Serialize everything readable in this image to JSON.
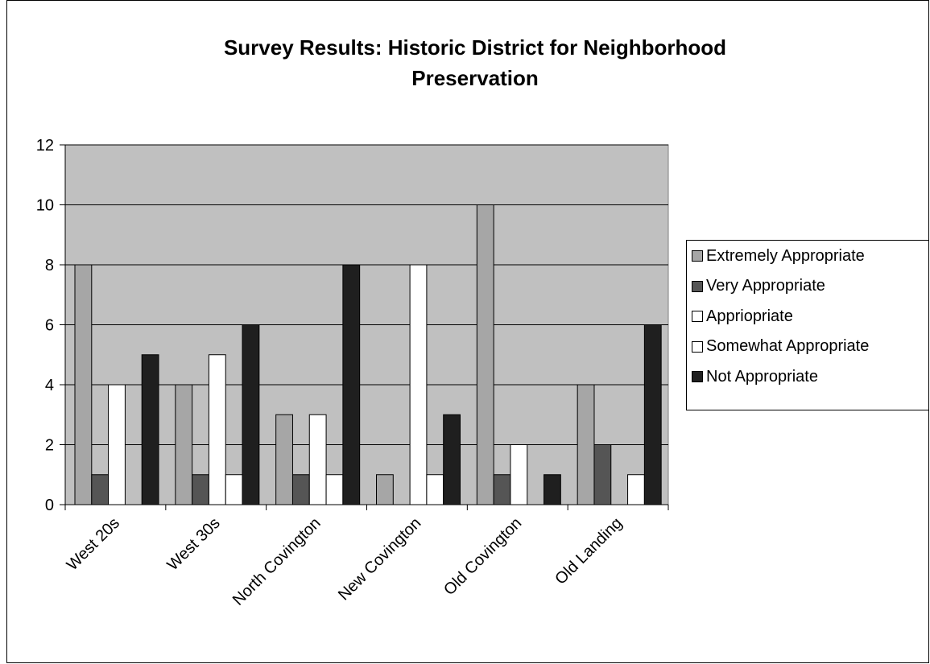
{
  "chart_data": {
    "type": "bar",
    "title": "Survey Results: Historic District for Neighborhood Preservation",
    "title_lines": [
      "Survey Results: Historic District for Neighborhood",
      "Preservation"
    ],
    "xlabel": "",
    "ylabel": "",
    "ylim": [
      0,
      12
    ],
    "yticks": [
      "0",
      "2",
      "4",
      "6",
      "8",
      "10",
      "12"
    ],
    "grid": true,
    "legend_position": "right",
    "categories": [
      "West 20s",
      "West 30s",
      "North Covington",
      "New Covington",
      "Old Covington",
      "Old Landing"
    ],
    "series": [
      {
        "name": "Extremely Appropriate",
        "color": "#a6a6a6",
        "values": [
          8,
          4,
          3,
          1,
          10,
          4
        ]
      },
      {
        "name": "Very Appropriate",
        "color": "#555555",
        "values": [
          1,
          1,
          1,
          0,
          1,
          2
        ]
      },
      {
        "name": "Appriopriate",
        "color": "#ffffff",
        "values": [
          4,
          5,
          3,
          8,
          2,
          0
        ]
      },
      {
        "name": "Somewhat Appropriate",
        "color": "#ffffff",
        "values": [
          0,
          1,
          1,
          1,
          0,
          1
        ]
      },
      {
        "name": "Not Appropriate",
        "color": "#1f1f1f",
        "values": [
          5,
          6,
          8,
          3,
          1,
          6
        ]
      }
    ],
    "plot_background": "#c0c0c0"
  }
}
